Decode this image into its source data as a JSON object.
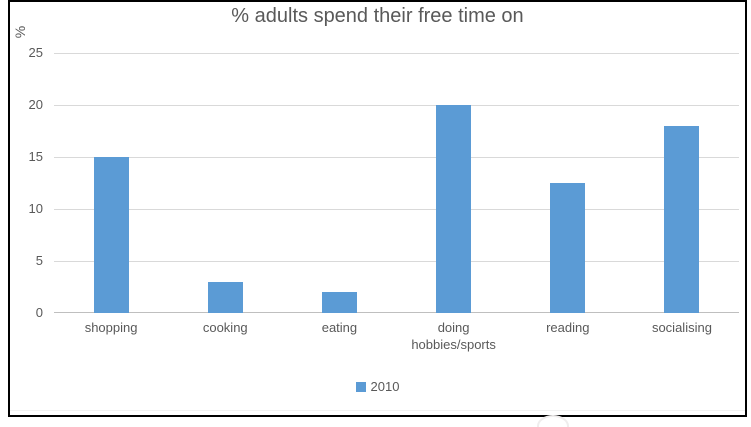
{
  "chart_data": {
    "type": "bar",
    "title": "% adults spend their free time on",
    "ylabel": "%",
    "xlabel": "",
    "categories": [
      "shopping",
      "cooking",
      "eating",
      "doing hobbies/sports",
      "reading",
      "socialising"
    ],
    "series": [
      {
        "name": "2010",
        "values": [
          15,
          3,
          2,
          20,
          12.5,
          18
        ]
      }
    ],
    "ylim": [
      0,
      25
    ],
    "yticks": [
      0,
      5,
      10,
      15,
      20,
      25
    ],
    "grid": true,
    "legend_position": "bottom",
    "colors": {
      "bar": "#5b9bd5",
      "gridline": "#d9d9d9",
      "axisline": "#bfbfbf",
      "text": "#595959",
      "frame_border": "#000000"
    }
  }
}
